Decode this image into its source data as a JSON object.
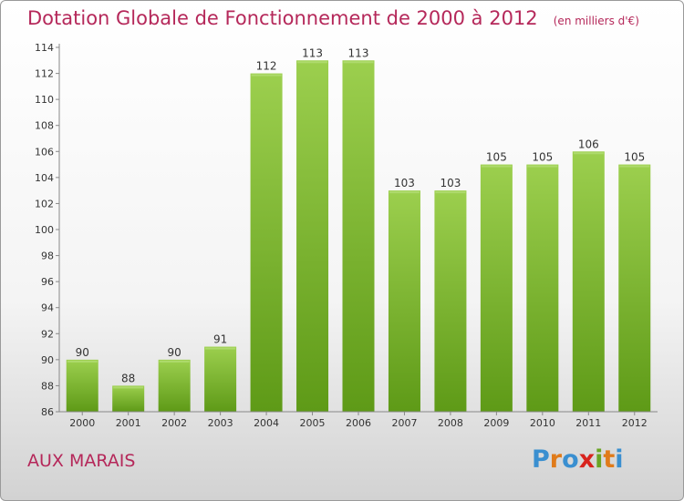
{
  "header": {
    "title": "Dotation Globale de Fonctionnement de 2000 à 2012",
    "subtitle": "(en milliers d'€)"
  },
  "footer": {
    "commune": "AUX MARAIS",
    "logo_letters": [
      {
        "char": "P",
        "color": "#3a8fd0"
      },
      {
        "char": "r",
        "color": "#e07b1a"
      },
      {
        "char": "o",
        "color": "#3a8fd0"
      },
      {
        "char": "x",
        "color": "#d8231d"
      },
      {
        "char": "i",
        "color": "#6aa524"
      },
      {
        "char": "t",
        "color": "#e07b1a"
      },
      {
        "char": "i",
        "color": "#3a8fd0"
      }
    ]
  },
  "chart_data": {
    "type": "bar",
    "categories": [
      "2000",
      "2001",
      "2002",
      "2003",
      "2004",
      "2005",
      "2006",
      "2007",
      "2008",
      "2009",
      "2010",
      "2011",
      "2012"
    ],
    "values": [
      90,
      88,
      90,
      91,
      112,
      113,
      113,
      103,
      103,
      105,
      105,
      106,
      105
    ],
    "data_labels": [
      "90",
      "88",
      "90",
      "91",
      "112",
      "113",
      "113",
      "103",
      "103",
      "105",
      "105",
      "106",
      "105"
    ],
    "ylim": [
      86,
      114
    ],
    "yticks": [
      86,
      88,
      90,
      92,
      94,
      96,
      98,
      100,
      102,
      104,
      106,
      108,
      110,
      112,
      114
    ],
    "xlabel": "",
    "ylabel": "",
    "grid": false,
    "bar_color_top": "#9ccf4e",
    "bar_color_bottom": "#5e9a17"
  }
}
